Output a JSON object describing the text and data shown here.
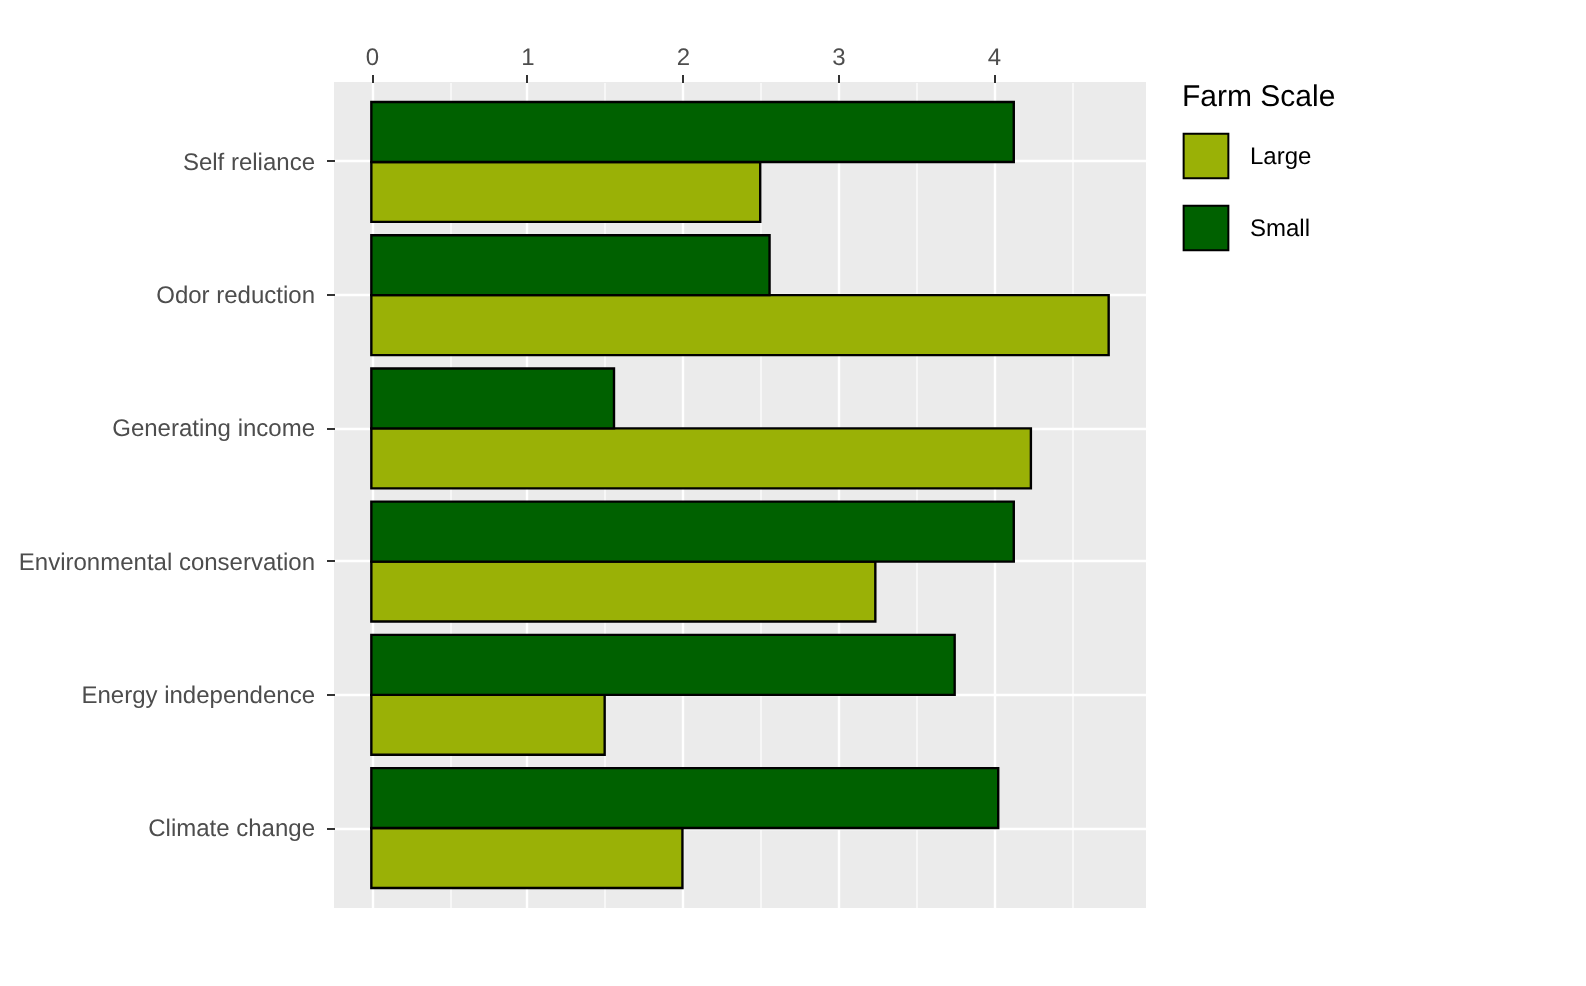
{
  "chart_data": {
    "type": "bar",
    "orientation": "horizontal",
    "legend_title": "Farm Scale",
    "categories": [
      "Self reliance",
      "Odor reduction",
      "Generating income",
      "Environmental conservation",
      "Energy independence",
      "Climate change"
    ],
    "series": [
      {
        "name": "Large",
        "color": "#9ab106",
        "values": [
          2.5,
          4.74,
          4.24,
          3.24,
          1.5,
          2.0
        ]
      },
      {
        "name": "Small",
        "color": "#006100",
        "values": [
          4.13,
          2.56,
          1.56,
          4.13,
          3.75,
          4.03
        ]
      }
    ],
    "xlim": [
      -0.24,
      4.98
    ],
    "xticks": [
      0,
      {
        "value": 0.5,
        "label": null
      },
      1,
      {
        "value": 1.5,
        "label": null
      },
      2,
      {
        "value": 2.5,
        "label": null
      },
      3,
      {
        "value": 3.5,
        "label": null
      },
      4,
      {
        "value": 4.5,
        "label": null
      }
    ],
    "grid": true,
    "legend": "right"
  }
}
